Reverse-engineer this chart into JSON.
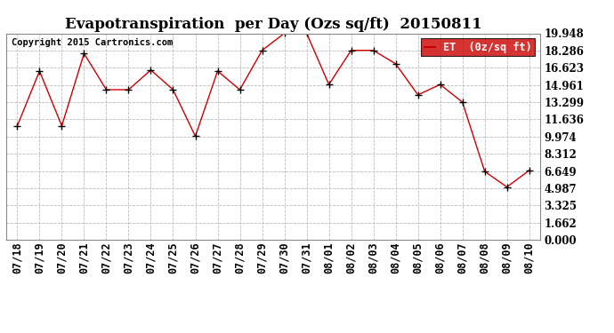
{
  "title": "Evapotranspiration  per Day (Ozs sq/ft)  20150811",
  "copyright": "Copyright 2015 Cartronics.com",
  "x_labels": [
    "07/18",
    "07/19",
    "07/20",
    "07/21",
    "07/22",
    "07/23",
    "07/24",
    "07/25",
    "07/26",
    "07/27",
    "07/28",
    "07/29",
    "07/30",
    "07/31",
    "08/01",
    "08/02",
    "08/03",
    "08/04",
    "08/05",
    "08/06",
    "08/07",
    "08/08",
    "08/09",
    "08/10"
  ],
  "y_values": [
    11.0,
    16.3,
    11.0,
    18.0,
    14.5,
    14.5,
    16.4,
    14.5,
    10.0,
    16.3,
    14.5,
    18.3,
    19.95,
    19.95,
    15.0,
    18.3,
    18.3,
    17.0,
    14.0,
    15.0,
    13.3,
    6.6,
    5.1,
    6.7
  ],
  "y_ticks": [
    0.0,
    1.662,
    3.325,
    4.987,
    6.649,
    8.312,
    9.974,
    11.636,
    13.299,
    14.961,
    16.623,
    18.286,
    19.948
  ],
  "y_tick_labels": [
    "0.000",
    "1.662",
    "3.325",
    "4.987",
    "6.649",
    "8.312",
    "9.974",
    "11.636",
    "13.299",
    "14.961",
    "16.623",
    "18.286",
    "19.948"
  ],
  "ylim": [
    0.0,
    19.948
  ],
  "line_color": "#cc0000",
  "marker": "+",
  "bg_color": "#ffffff",
  "grid_color": "#bbbbbb",
  "legend_bg": "#cc0000",
  "legend_text_color": "#ffffff",
  "title_fontsize": 12,
  "tick_fontsize": 8.5,
  "copyright_fontsize": 7.5
}
